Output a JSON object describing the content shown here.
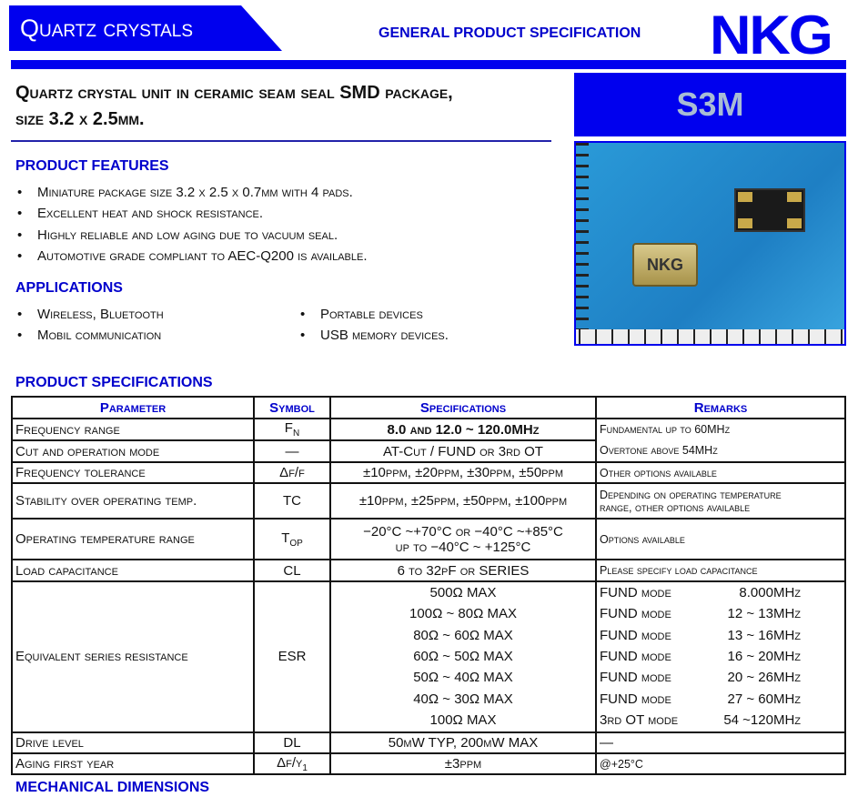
{
  "header": {
    "banner": "Quartz crystals",
    "subtitle": "GENERAL PRODUCT SPECIFICATION",
    "logo": "NKG",
    "model": "S3M",
    "brand_color": "#0000ee"
  },
  "title": [
    "Quartz crystal unit in ceramic seam seal SMD package,",
    "size 3.2 x 2.5mm."
  ],
  "photo": {
    "chip_text": "NKG"
  },
  "features": {
    "heading": "PRODUCT FEATURES",
    "items": [
      "Miniature  package size 3.2 x 2.5 x 0.7mm with 4 pads.",
      "Excellent heat and shock resistance.",
      "Highly reliable and low aging due to vacuum seal.",
      "Automotive grade compliant to AEC-Q200 is available."
    ]
  },
  "applications": {
    "heading": "APPLICATIONS",
    "col1": [
      "Wireless, Bluetooth",
      "Mobil communication"
    ],
    "col2": [
      "Portable devices",
      "USB memory devices."
    ]
  },
  "specs": {
    "heading": "PRODUCT SPECIFICATIONS",
    "headers": [
      "Parameter",
      "Symbol",
      "Specifications",
      "Remarks"
    ],
    "freq": {
      "p": "Frequency range",
      "s": "F",
      "sub": "N",
      "v": "8.0 and 12.0 ~ 120.0MHz",
      "r1": "Fundamental up to 60MHz",
      "r2": "Overtone above 54MHz"
    },
    "cut": {
      "p": "Cut and operation mode",
      "s": "—",
      "v": "AT-Cut / FUND or 3rd OT"
    },
    "tol": {
      "p": "Frequency tolerance",
      "s": "Δf/f",
      "v": "±10ppm, ±20ppm, ±30ppm, ±50ppm",
      "r": "Other options available"
    },
    "stab": {
      "p": "Stability over operating temp.",
      "s": "TC",
      "v": "±10ppm, ±25ppm, ±50ppm, ±100ppm",
      "r1": "Depending on operating  temperature",
      "r2": "range, other options available"
    },
    "op": {
      "p": "Operating temperature range",
      "s": "T",
      "sub": "OP",
      "v1": "−20°C ~+70°C  or  −40°C ~+85°C",
      "v2": "up to −40°C ~ +125°C",
      "r": "Options available"
    },
    "load": {
      "p": "Load capacitance",
      "s": "CL",
      "v": "6 to 32pF or SERIES",
      "r": "Please specify load capacitance"
    },
    "esr": {
      "p": "Equivalent series resistance",
      "s": "ESR",
      "values": [
        "500Ω MAX",
        "100Ω ~ 80Ω MAX",
        "80Ω ~ 60Ω MAX",
        "60Ω ~ 50Ω MAX",
        "50Ω ~ 40Ω MAX",
        "40Ω ~ 30Ω MAX",
        "100Ω MAX"
      ],
      "modes": [
        "FUND mode",
        "FUND mode",
        "FUND mode",
        "FUND mode",
        "FUND mode",
        "FUND mode",
        "3rd OT mode"
      ],
      "freqs": [
        "8.000MHz",
        "12 ~ 13MHz",
        "13 ~ 16MHz",
        "16 ~ 20MHz",
        "20 ~ 26MHz",
        "27 ~ 60MHz",
        "54 ~120MHz"
      ]
    },
    "drive": {
      "p": "Drive level",
      "s": "DL",
      "v": "50μW TYP,  200μW MAX",
      "r": "—"
    },
    "aging": {
      "p": "Aging first year",
      "s": "Δf/y",
      "sub": "1",
      "v": "±3ppm",
      "r": "@+25°C"
    }
  },
  "mech": {
    "heading": "MECHANICAL DIMENSIONS"
  }
}
